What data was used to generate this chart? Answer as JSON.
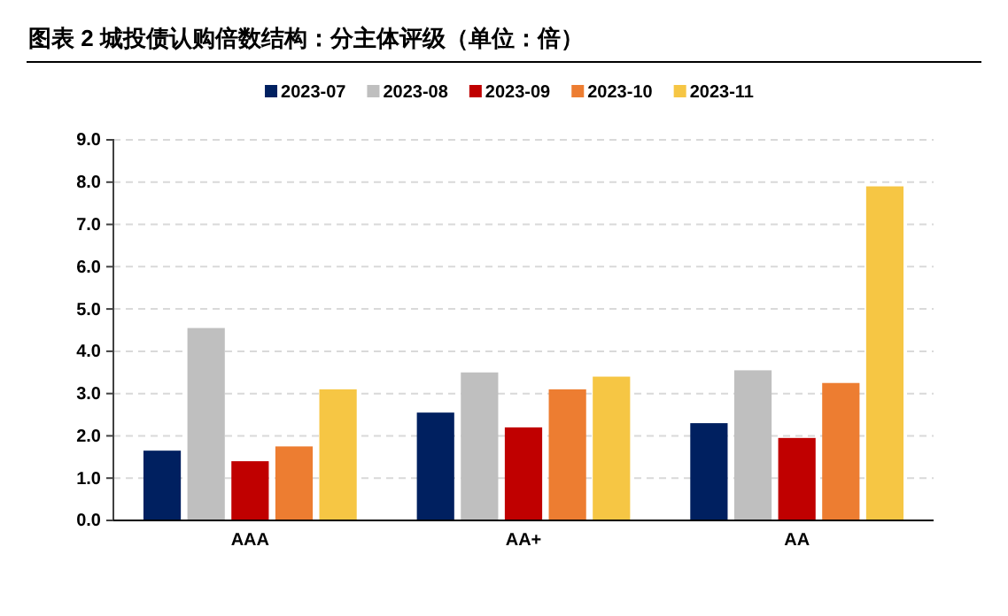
{
  "chart_data": {
    "type": "bar",
    "title": "图表 2 城投债认购倍数结构：分主体评级（单位：倍）",
    "categories": [
      "AAA",
      "AA+",
      "AA"
    ],
    "series": [
      {
        "name": "2023-07",
        "color": "#002060",
        "values": [
          1.65,
          2.55,
          2.3
        ]
      },
      {
        "name": "2023-08",
        "color": "#bfbfbf",
        "values": [
          4.55,
          3.5,
          3.55
        ]
      },
      {
        "name": "2023-09",
        "color": "#c00000",
        "values": [
          1.4,
          2.2,
          1.95
        ]
      },
      {
        "name": "2023-10",
        "color": "#ed7d31",
        "values": [
          1.75,
          3.1,
          3.25
        ]
      },
      {
        "name": "2023-11",
        "color": "#f6c644",
        "values": [
          3.1,
          3.4,
          7.9
        ]
      }
    ],
    "ylim": [
      0,
      9
    ],
    "yticks": [
      {
        "value": 0,
        "label": "0.0"
      },
      {
        "value": 1,
        "label": "1.0"
      },
      {
        "value": 2,
        "label": "2.0"
      },
      {
        "value": 3,
        "label": "3.0"
      },
      {
        "value": 4,
        "label": "4.0"
      },
      {
        "value": 5,
        "label": "5.0"
      },
      {
        "value": 6,
        "label": "6.0"
      },
      {
        "value": 7,
        "label": "7.0"
      },
      {
        "value": 8,
        "label": "8.0"
      },
      {
        "value": 9,
        "label": "9.0"
      }
    ],
    "grid": "y",
    "legend": "top"
  }
}
